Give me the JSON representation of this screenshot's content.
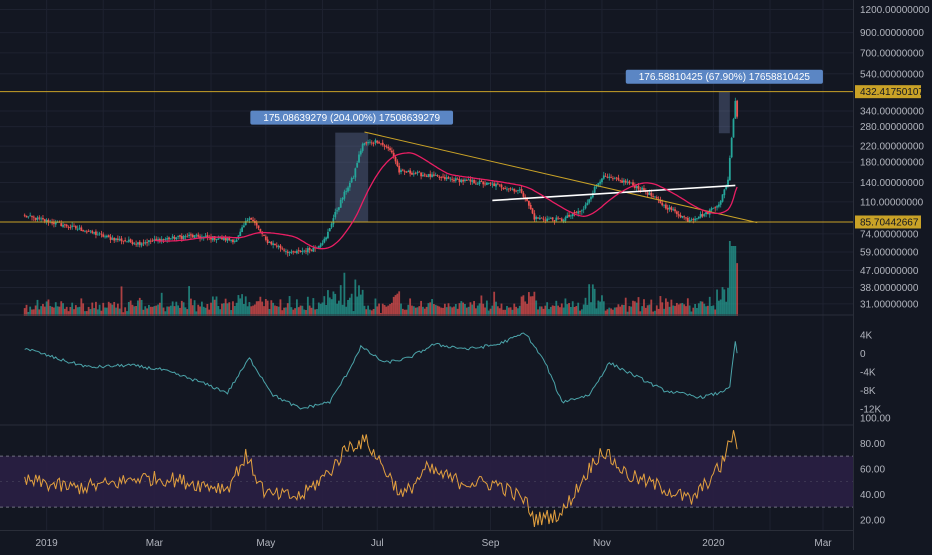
{
  "colors": {
    "background": "#131722",
    "grid": "#1e2230",
    "axis_text": "#b2b5be",
    "up": "#26a69a",
    "down": "#ef5350",
    "ma": "#e91e63",
    "hline": "#c9a227",
    "trendline": "#c9a227",
    "neckline": "#ffffff",
    "obv": "#4ba3a9",
    "rsi": "#e2a03f",
    "rsi_band": "#2a1f44",
    "rsi_band_line": "#6f6f7f",
    "label_bg": "#5b86c4",
    "price_tag_bg": "#c9a227",
    "range_shade": "#6c7aa6"
  },
  "x_axis": {
    "labels": [
      "2019",
      "Mar",
      "May",
      "Jul",
      "Sep",
      "Nov",
      "2020",
      "Mar"
    ]
  },
  "chart_data": [
    {
      "type": "candlestick",
      "panel": "price",
      "y_scale": "log",
      "ylim": [
        27,
        1350
      ],
      "y_ticks": [
        {
          "v": 1200,
          "label": "1200.00000000"
        },
        {
          "v": 900,
          "label": "900.00000000"
        },
        {
          "v": 700,
          "label": "700.00000000"
        },
        {
          "v": 540,
          "label": "540.00000000"
        },
        {
          "v": 340,
          "label": "340.00000000"
        },
        {
          "v": 280,
          "label": "280.00000000"
        },
        {
          "v": 220,
          "label": "220.00000000"
        },
        {
          "v": 180,
          "label": "180.00000000"
        },
        {
          "v": 140,
          "label": "140.00000000"
        },
        {
          "v": 110,
          "label": "110.00000000"
        },
        {
          "v": 74,
          "label": "74.00000000"
        },
        {
          "v": 59,
          "label": "59.00000000"
        },
        {
          "v": 47,
          "label": "47.00000000"
        },
        {
          "v": 38,
          "label": "38.00000000"
        },
        {
          "v": 31,
          "label": "31.00000000"
        }
      ],
      "price_tags": [
        {
          "v": 432.4175,
          "label": "432.41750107"
        },
        {
          "v": 85.7044,
          "label": "85.70442667"
        }
      ],
      "horizontal_levels": [
        432.4175,
        85.7044
      ],
      "measure_labels": [
        {
          "text": "175.08639279 (204.00%) 17508639279",
          "from": "2019-06-08",
          "to": "2019-06-26",
          "low": 85.7,
          "high": 260
        },
        {
          "text": "176.58810425 (67.90%) 17658810425",
          "from": "2020-01-04",
          "to": "2020-01-10",
          "low": 258,
          "high": 432
        }
      ],
      "trendline": [
        {
          "date": "2019-06-24",
          "v": 262
        },
        {
          "date": "2020-01-25",
          "v": 85
        }
      ],
      "neckline": [
        {
          "date": "2019-09-02",
          "v": 112
        },
        {
          "date": "2020-01-13",
          "v": 135
        }
      ],
      "anchors": [
        [
          "2018-12-20",
          92
        ],
        [
          "2019-01-05",
          85
        ],
        [
          "2019-01-20",
          78
        ],
        [
          "2019-02-05",
          70
        ],
        [
          "2019-02-20",
          66
        ],
        [
          "2019-03-05",
          69
        ],
        [
          "2019-03-20",
          72
        ],
        [
          "2019-04-05",
          70
        ],
        [
          "2019-04-15",
          68
        ],
        [
          "2019-04-22",
          92
        ],
        [
          "2019-05-01",
          68
        ],
        [
          "2019-05-15",
          58
        ],
        [
          "2019-05-28",
          62
        ],
        [
          "2019-06-03",
          70
        ],
        [
          "2019-06-10",
          105
        ],
        [
          "2019-06-18",
          150
        ],
        [
          "2019-06-23",
          225
        ],
        [
          "2019-07-01",
          235
        ],
        [
          "2019-07-09",
          205
        ],
        [
          "2019-07-13",
          160
        ],
        [
          "2019-07-20",
          158
        ],
        [
          "2019-08-05",
          148
        ],
        [
          "2019-08-20",
          142
        ],
        [
          "2019-09-05",
          135
        ],
        [
          "2019-09-18",
          125
        ],
        [
          "2019-09-25",
          90
        ],
        [
          "2019-10-10",
          88
        ],
        [
          "2019-10-22",
          100
        ],
        [
          "2019-11-01",
          150
        ],
        [
          "2019-11-15",
          140
        ],
        [
          "2019-11-25",
          125
        ],
        [
          "2019-12-05",
          105
        ],
        [
          "2019-12-18",
          88
        ],
        [
          "2019-12-28",
          95
        ],
        [
          "2020-01-05",
          110
        ],
        [
          "2020-01-09",
          145
        ],
        [
          "2020-01-11",
          240
        ],
        [
          "2020-01-13",
          390
        ],
        [
          "2020-01-14",
          320
        ]
      ]
    },
    {
      "type": "line",
      "panel": "obv",
      "ylim": [
        -14000,
        6000
      ],
      "y_ticks": [
        {
          "v": 4000,
          "label": "4K"
        },
        {
          "v": 0,
          "label": "0"
        },
        {
          "v": -4000,
          "label": "-4K"
        },
        {
          "v": -8000,
          "label": "-8K"
        },
        {
          "v": -12000,
          "label": "-12K"
        }
      ],
      "anchors": [
        [
          "2018-12-20",
          1200
        ],
        [
          "2019-01-10",
          -1500
        ],
        [
          "2019-01-25",
          -3000
        ],
        [
          "2019-02-15",
          -2500
        ],
        [
          "2019-03-05",
          -3500
        ],
        [
          "2019-03-25",
          -6000
        ],
        [
          "2019-04-10",
          -8500
        ],
        [
          "2019-04-22",
          -1000
        ],
        [
          "2019-05-05",
          -9000
        ],
        [
          "2019-05-20",
          -12000
        ],
        [
          "2019-06-05",
          -10500
        ],
        [
          "2019-06-15",
          -4000
        ],
        [
          "2019-06-22",
          1500
        ],
        [
          "2019-07-05",
          -2000
        ],
        [
          "2019-07-18",
          -1000
        ],
        [
          "2019-08-01",
          2000
        ],
        [
          "2019-08-20",
          1000
        ],
        [
          "2019-09-05",
          2000
        ],
        [
          "2019-09-20",
          4500
        ],
        [
          "2019-10-01",
          -2000
        ],
        [
          "2019-10-10",
          -10500
        ],
        [
          "2019-10-25",
          -9000
        ],
        [
          "2019-11-05",
          -2000
        ],
        [
          "2019-11-20",
          -5000
        ],
        [
          "2019-12-05",
          -8000
        ],
        [
          "2019-12-25",
          -9500
        ],
        [
          "2020-01-05",
          -8500
        ],
        [
          "2020-01-10",
          -7000
        ],
        [
          "2020-01-13",
          2500
        ],
        [
          "2020-01-14",
          0
        ]
      ]
    },
    {
      "type": "line",
      "panel": "rsi",
      "ylim": [
        12,
        100
      ],
      "band": [
        30,
        70
      ],
      "mid_line": 50,
      "y_ticks": [
        {
          "v": 100,
          "label": "100.00"
        },
        {
          "v": 80,
          "label": "80.00"
        },
        {
          "v": 60,
          "label": "60.00"
        },
        {
          "v": 40,
          "label": "40.00"
        },
        {
          "v": 20,
          "label": "20.00"
        }
      ],
      "anchors": [
        [
          "2018-12-25",
          50
        ],
        [
          "2019-01-15",
          45
        ],
        [
          "2019-02-05",
          48
        ],
        [
          "2019-02-20",
          53
        ],
        [
          "2019-03-10",
          52
        ],
        [
          "2019-03-25",
          48
        ],
        [
          "2019-04-10",
          45
        ],
        [
          "2019-04-20",
          70
        ],
        [
          "2019-05-01",
          40
        ],
        [
          "2019-05-20",
          38
        ],
        [
          "2019-06-05",
          58
        ],
        [
          "2019-06-15",
          78
        ],
        [
          "2019-06-25",
          82
        ],
        [
          "2019-07-05",
          60
        ],
        [
          "2019-07-15",
          38
        ],
        [
          "2019-07-28",
          60
        ],
        [
          "2019-08-15",
          50
        ],
        [
          "2019-09-05",
          48
        ],
        [
          "2019-09-20",
          35
        ],
        [
          "2019-09-25",
          20
        ],
        [
          "2019-10-10",
          25
        ],
        [
          "2019-10-25",
          60
        ],
        [
          "2019-11-01",
          75
        ],
        [
          "2019-11-15",
          55
        ],
        [
          "2019-12-05",
          45
        ],
        [
          "2019-12-20",
          35
        ],
        [
          "2020-01-05",
          62
        ],
        [
          "2020-01-11",
          85
        ],
        [
          "2020-01-13",
          88
        ],
        [
          "2020-01-14",
          70
        ]
      ]
    }
  ]
}
